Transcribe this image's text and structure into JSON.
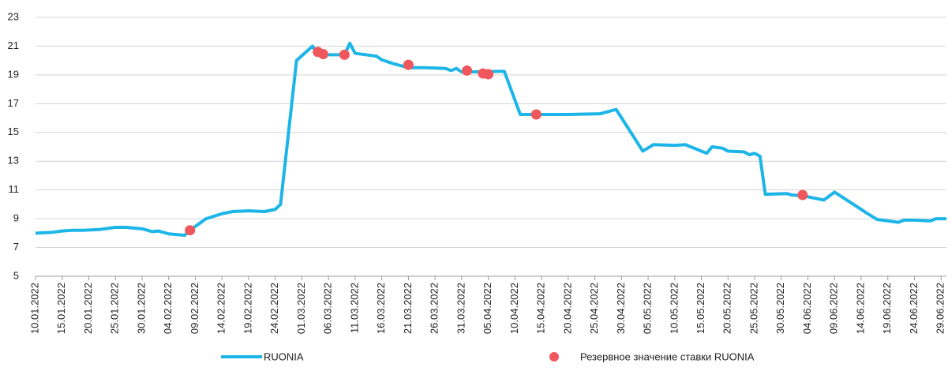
{
  "chart_data": {
    "type": "line",
    "xlim": [
      "10.01.2022",
      "30.06.2022"
    ],
    "ylim": [
      5,
      23
    ],
    "yticks": [
      5,
      7,
      9,
      11,
      13,
      15,
      17,
      19,
      21,
      23
    ],
    "grid": true,
    "legend": "bottom",
    "xticks": [
      "10.01.2022",
      "15.01.2022",
      "20.01.2022",
      "25.01.2022",
      "30.01.2022",
      "04.02.2022",
      "09.02.2022",
      "14.02.2022",
      "19.02.2022",
      "24.02.2022",
      "01.03.2022",
      "06.03.2022",
      "11.03.2022",
      "16.03.2022",
      "21.03.2022",
      "26.03.2022",
      "31.03.2022",
      "05.04.2022",
      "10.04.2022",
      "15.04.2022",
      "20.04.2022",
      "25.04.2022",
      "30.04.2022",
      "05.05.2022",
      "10.05.2022",
      "15.05.2022",
      "20.05.2022",
      "25.05.2022",
      "30.05.2022",
      "04.06.2022",
      "09.06.2022",
      "14.06.2022",
      "19.06.2022",
      "24.06.2022",
      "29.06.2022"
    ],
    "series": [
      {
        "name": "RUONIA",
        "type": "line",
        "color": "#1cb5e8",
        "x": [
          "10.01.2022",
          "13.01.2022",
          "15.01.2022",
          "17.01.2022",
          "19.01.2022",
          "22.01.2022",
          "25.01.2022",
          "27.01.2022",
          "30.01.2022",
          "01.02.2022",
          "02.02.2022",
          "04.02.2022",
          "07.02.2022",
          "08.02.2022",
          "11.02.2022",
          "14.02.2022",
          "16.02.2022",
          "19.02.2022",
          "22.02.2022",
          "24.02.2022",
          "25.02.2022",
          "28.02.2022",
          "03.03.2022",
          "04.03.2022",
          "09.03.2022",
          "10.03.2022",
          "11.03.2022",
          "15.03.2022",
          "16.03.2022",
          "18.03.2022",
          "21.03.2022",
          "24.03.2022",
          "28.03.2022",
          "29.03.2022",
          "30.03.2022",
          "31.03.2022",
          "08.04.2022",
          "11.04.2022",
          "14.04.2022",
          "20.04.2022",
          "26.04.2022",
          "27.04.2022",
          "29.04.2022",
          "04.05.2022",
          "06.05.2022",
          "10.05.2022",
          "12.05.2022",
          "16.05.2022",
          "17.05.2022",
          "19.05.2022",
          "20.05.2022",
          "23.05.2022",
          "24.05.2022",
          "25.05.2022",
          "26.05.2022",
          "27.05.2022",
          "31.05.2022",
          "01.06.2022",
          "03.06.2022",
          "07.06.2022",
          "09.06.2022",
          "14.06.2022",
          "15.06.2022",
          "17.06.2022",
          "21.06.2022",
          "22.06.2022",
          "24.06.2022",
          "27.06.2022",
          "28.06.2022",
          "30.06.2022"
        ],
        "values": [
          8.0,
          8.05,
          8.15,
          8.2,
          8.2,
          8.25,
          8.4,
          8.4,
          8.3,
          8.1,
          8.15,
          7.95,
          7.85,
          8.2,
          9.0,
          9.35,
          9.5,
          9.55,
          9.5,
          9.65,
          10.0,
          20.0,
          21.0,
          20.4,
          20.4,
          21.2,
          20.5,
          20.3,
          20.05,
          19.8,
          19.5,
          19.5,
          19.45,
          19.3,
          19.45,
          19.2,
          19.25,
          16.25,
          16.25,
          16.25,
          16.3,
          16.4,
          16.6,
          13.7,
          14.15,
          14.1,
          14.15,
          13.55,
          14.0,
          13.9,
          13.7,
          13.65,
          13.45,
          13.55,
          13.35,
          10.7,
          10.75,
          10.65,
          10.6,
          10.3,
          10.85,
          9.65,
          9.4,
          8.95,
          8.75,
          8.9,
          8.9,
          8.85,
          9.0,
          9.0
        ]
      },
      {
        "name": "Резервное значение ставки RUONIA",
        "type": "scatter",
        "color": "#f0575d",
        "x": [
          "08.02.2022",
          "04.03.2022",
          "05.03.2022",
          "09.03.2022",
          "21.03.2022",
          "01.04.2022",
          "04.04.2022",
          "05.04.2022",
          "14.04.2022",
          "03.06.2022"
        ],
        "values": [
          8.2,
          20.6,
          20.45,
          20.4,
          19.7,
          19.3,
          19.1,
          19.05,
          16.25,
          10.65
        ]
      }
    ]
  }
}
